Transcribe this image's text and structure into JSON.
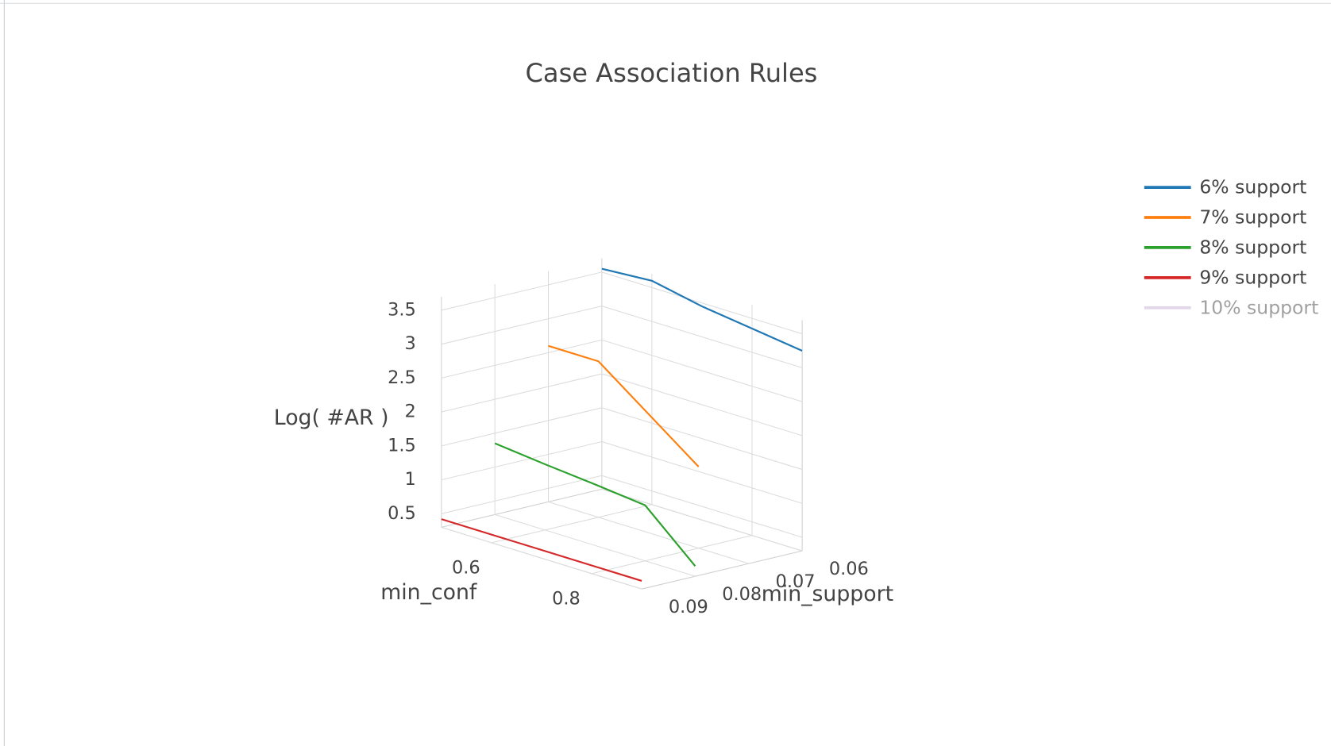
{
  "chart_data": {
    "type": "line3d",
    "title": "Case Association Rules",
    "x_label": "min_conf",
    "y_label": "min_support",
    "z_label": "Log( #AR )",
    "x": [
      0.5,
      0.6,
      0.7,
      0.8,
      0.9
    ],
    "xlim": [
      0.5,
      0.9
    ],
    "xticks": [
      0.6,
      0.8
    ],
    "ylim": [
      0.06,
      0.09
    ],
    "yticks": [
      0.06,
      0.07,
      0.08,
      0.09
    ],
    "zlim": [
      0.3,
      3.7
    ],
    "zticks": [
      0.5,
      1,
      1.5,
      2,
      2.5,
      3,
      3.5
    ],
    "grid": true,
    "legend": "top-right",
    "series": [
      {
        "name": "6% support",
        "color": "#1f77b4",
        "support": 0.06,
        "values": [
          3.55,
          3.6,
          3.45,
          3.35,
          3.25
        ]
      },
      {
        "name": "7% support",
        "color": "#ff7f0e",
        "support": 0.07,
        "values": [
          2.6,
          2.6,
          2.05,
          1.5,
          null
        ]
      },
      {
        "name": "8% support",
        "color": "#2ca02c",
        "support": 0.08,
        "values": [
          1.35,
          1.27,
          1.2,
          1.12,
          0.45
        ]
      },
      {
        "name": "9% support",
        "color": "#d62728",
        "support": 0.09,
        "values": [
          0.42,
          0.42,
          0.42,
          0.42,
          0.42
        ]
      },
      {
        "name": "10% support",
        "color": "#c5b0d5",
        "support": 0.1,
        "visible": "legendonly",
        "values": [
          null,
          null,
          null,
          null,
          null
        ]
      }
    ]
  }
}
